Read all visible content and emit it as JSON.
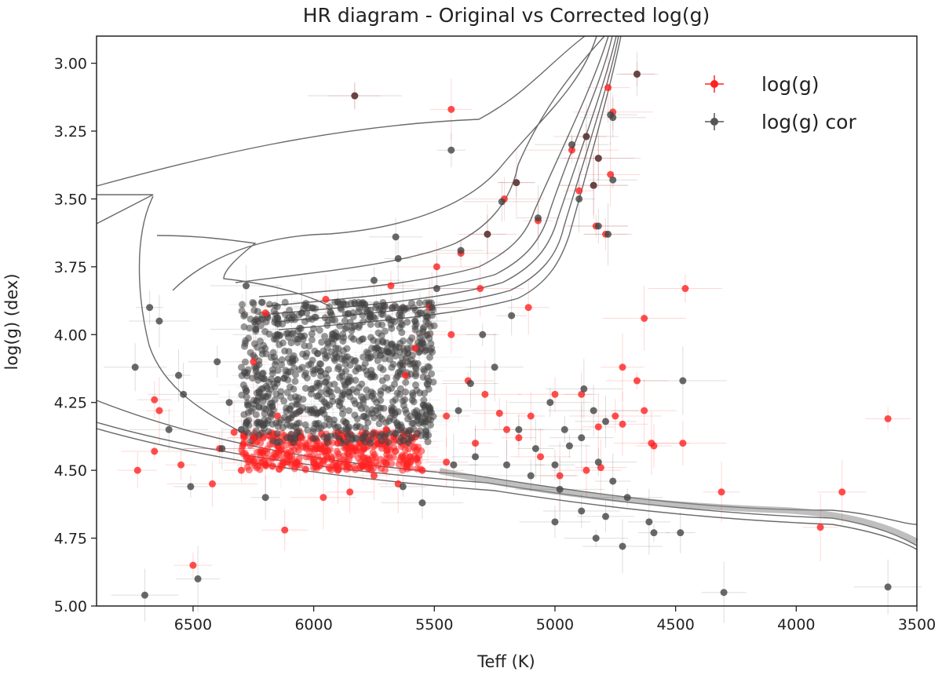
{
  "chart_data": {
    "type": "scatter",
    "title": "HR diagram - Original vs Corrected log(g)",
    "xlabel": "Teff (K)",
    "ylabel": "log(g) (dex)",
    "xlim": [
      6900,
      3500
    ],
    "ylim": [
      5.0,
      2.9
    ],
    "x_inverted": true,
    "y_inverted": true,
    "xticks": [
      6500,
      6000,
      5500,
      5000,
      4500,
      4000,
      3500
    ],
    "xtick_labels": [
      "6500",
      "6000",
      "5500",
      "5000",
      "4500",
      "4000",
      "3500"
    ],
    "yticks": [
      3.0,
      3.25,
      3.5,
      3.75,
      4.0,
      4.25,
      4.5,
      4.75,
      5.0
    ],
    "ytick_labels": [
      "3.00",
      "3.25",
      "3.50",
      "3.75",
      "4.00",
      "4.25",
      "4.50",
      "4.75",
      "5.00"
    ],
    "grid": false,
    "legend": {
      "placement": "upper-right",
      "entries": [
        "log(g)",
        "log(g) cor"
      ]
    },
    "series": [
      {
        "name": "log(g)",
        "color": "#ff2222",
        "marker": "circle with error bars",
        "points": [
          [
            5830,
            3.12
          ],
          [
            5430,
            3.17
          ],
          [
            4760,
            3.18
          ],
          [
            4660,
            3.04
          ],
          [
            4780,
            3.09
          ],
          [
            4870,
            3.27
          ],
          [
            4820,
            3.35
          ],
          [
            4930,
            3.32
          ],
          [
            4770,
            3.41
          ],
          [
            4840,
            3.45
          ],
          [
            5160,
            3.44
          ],
          [
            5210,
            3.5
          ],
          [
            5070,
            3.58
          ],
          [
            4900,
            3.47
          ],
          [
            4830,
            3.6
          ],
          [
            4790,
            3.63
          ],
          [
            5280,
            3.63
          ],
          [
            5390,
            3.7
          ],
          [
            5490,
            3.75
          ],
          [
            5310,
            3.83
          ],
          [
            5110,
            3.9
          ],
          [
            4460,
            3.83
          ],
          [
            4630,
            3.94
          ],
          [
            4720,
            4.12
          ],
          [
            4660,
            4.17
          ],
          [
            4890,
            4.22
          ],
          [
            4630,
            4.28
          ],
          [
            4750,
            4.3
          ],
          [
            4820,
            4.34
          ],
          [
            4590,
            4.41
          ],
          [
            4470,
            4.4
          ],
          [
            4310,
            4.58
          ],
          [
            3900,
            4.71
          ],
          [
            3810,
            4.58
          ],
          [
            3620,
            4.31
          ],
          [
            5000,
            4.22
          ],
          [
            5100,
            4.3
          ],
          [
            5200,
            4.35
          ],
          [
            5330,
            4.4
          ],
          [
            5450,
            4.47
          ],
          [
            5550,
            4.5
          ],
          [
            5650,
            4.55
          ],
          [
            5750,
            4.52
          ],
          [
            5900,
            4.5
          ],
          [
            6000,
            4.47
          ],
          [
            6100,
            4.45
          ],
          [
            6200,
            4.48
          ],
          [
            6300,
            4.5
          ],
          [
            6420,
            4.55
          ],
          [
            6550,
            4.48
          ],
          [
            6730,
            4.5
          ],
          [
            6660,
            4.24
          ],
          [
            6640,
            4.28
          ],
          [
            6660,
            4.43
          ],
          [
            6500,
            4.85
          ],
          [
            6120,
            4.72
          ],
          [
            5960,
            4.6
          ],
          [
            5850,
            4.58
          ],
          [
            5600,
            4.45
          ],
          [
            5450,
            4.3
          ],
          [
            5360,
            4.17
          ],
          [
            5290,
            4.22
          ],
          [
            5230,
            4.29
          ],
          [
            5150,
            4.38
          ],
          [
            5060,
            4.45
          ],
          [
            4980,
            4.52
          ],
          [
            4870,
            4.5
          ],
          [
            4810,
            4.49
          ],
          [
            4720,
            4.33
          ],
          [
            4600,
            4.4
          ],
          [
            6330,
            4.36
          ],
          [
            6390,
            4.42
          ],
          [
            6250,
            4.38
          ],
          [
            6200,
            3.92
          ],
          [
            5950,
            3.87
          ],
          [
            5680,
            3.82
          ],
          [
            5520,
            3.9
          ],
          [
            5430,
            4.0
          ],
          [
            5580,
            4.05
          ],
          [
            5620,
            4.15
          ],
          [
            5700,
            4.35
          ],
          [
            5900,
            4.4
          ],
          [
            6050,
            4.38
          ],
          [
            6150,
            4.3
          ],
          [
            6250,
            4.1
          ]
        ]
      },
      {
        "name": "log(g) cor",
        "color": "#444444",
        "marker": "circle with error bars",
        "points": [
          [
            5830,
            3.12
          ],
          [
            5430,
            3.32
          ],
          [
            4760,
            3.2
          ],
          [
            4660,
            3.04
          ],
          [
            4770,
            3.19
          ],
          [
            4870,
            3.27
          ],
          [
            4820,
            3.35
          ],
          [
            4930,
            3.3
          ],
          [
            4760,
            3.43
          ],
          [
            4840,
            3.45
          ],
          [
            5160,
            3.44
          ],
          [
            5220,
            3.51
          ],
          [
            5070,
            3.57
          ],
          [
            4900,
            3.5
          ],
          [
            4820,
            3.6
          ],
          [
            4780,
            3.63
          ],
          [
            5280,
            3.63
          ],
          [
            5390,
            3.69
          ],
          [
            5660,
            3.64
          ],
          [
            5650,
            3.72
          ],
          [
            5490,
            3.83
          ],
          [
            5510,
            3.9
          ],
          [
            6280,
            3.82
          ],
          [
            6240,
            3.98
          ],
          [
            6400,
            4.1
          ],
          [
            6560,
            4.15
          ],
          [
            6540,
            4.22
          ],
          [
            6680,
            3.9
          ],
          [
            6640,
            3.95
          ],
          [
            6600,
            4.35
          ],
          [
            6740,
            4.12
          ],
          [
            6510,
            4.56
          ],
          [
            6480,
            4.9
          ],
          [
            6700,
            4.96
          ],
          [
            6200,
            4.6
          ],
          [
            5630,
            4.56
          ],
          [
            5550,
            4.62
          ],
          [
            5420,
            4.48
          ],
          [
            5330,
            4.45
          ],
          [
            5200,
            4.48
          ],
          [
            5100,
            4.52
          ],
          [
            4980,
            4.57
          ],
          [
            4940,
            4.41
          ],
          [
            4820,
            4.47
          ],
          [
            4760,
            4.54
          ],
          [
            4700,
            4.6
          ],
          [
            4790,
            4.67
          ],
          [
            4890,
            4.65
          ],
          [
            5000,
            4.69
          ],
          [
            4830,
            4.75
          ],
          [
            4720,
            4.78
          ],
          [
            4610,
            4.69
          ],
          [
            4590,
            4.73
          ],
          [
            4480,
            4.73
          ],
          [
            4470,
            4.17
          ],
          [
            4300,
            4.95
          ],
          [
            3620,
            4.93
          ],
          [
            5180,
            3.93
          ],
          [
            5300,
            4.0
          ],
          [
            5250,
            4.12
          ],
          [
            5350,
            4.18
          ],
          [
            5400,
            4.28
          ],
          [
            5150,
            4.35
          ],
          [
            5080,
            4.42
          ],
          [
            5000,
            4.48
          ],
          [
            4960,
            4.35
          ],
          [
            4890,
            4.38
          ],
          [
            4840,
            4.28
          ],
          [
            4790,
            4.32
          ],
          [
            4880,
            4.2
          ],
          [
            5020,
            4.25
          ],
          [
            6350,
            4.25
          ],
          [
            6300,
            4.35
          ],
          [
            6380,
            4.42
          ],
          [
            5900,
            3.88
          ],
          [
            5750,
            3.8
          ],
          [
            5630,
            3.9
          ],
          [
            5580,
            3.95
          ],
          [
            6050,
            3.92
          ],
          [
            6150,
            4.0
          ]
        ]
      }
    ],
    "dense_clusters": [
      {
        "series": "log(g)",
        "x_range": [
          6300,
          5550
        ],
        "y_range": [
          4.36,
          4.5
        ]
      },
      {
        "series": "log(g) cor",
        "x_range": [
          6300,
          5500
        ],
        "y_range": [
          3.88,
          4.4
        ]
      }
    ]
  }
}
